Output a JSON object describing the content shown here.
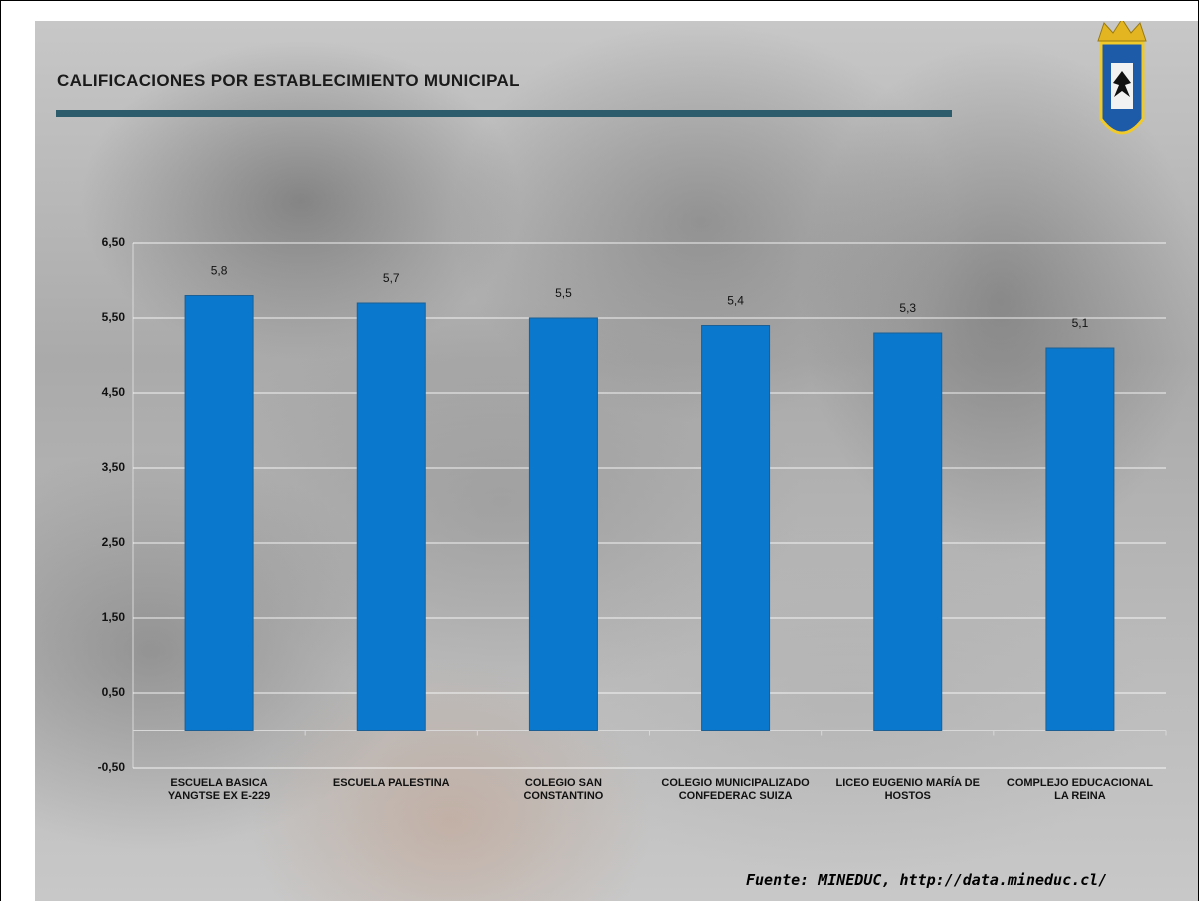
{
  "chart_data": {
    "type": "bar",
    "title": "CALIFICACIONES POR ESTABLECIMIENTO MUNICIPAL",
    "categories": [
      "ESCUELA BASICA YANGTSE EX E-229",
      "ESCUELA PALESTINA",
      "COLEGIO SAN CONSTANTINO",
      "COLEGIO MUNICIPALIZADO CONFEDERAC SUIZA",
      "LICEO EUGENIO MARÍA DE HOSTOS",
      "COMPLEJO EDUCACIONAL LA REINA"
    ],
    "values": [
      5.8,
      5.7,
      5.5,
      5.4,
      5.3,
      5.1
    ],
    "value_labels": [
      "5,8",
      "5,7",
      "5,5",
      "5,4",
      "5,3",
      "5,1"
    ],
    "color": "#0a78cc",
    "ylim": [
      -0.5,
      6.5
    ],
    "yticks": [
      {
        "value": -0.5,
        "label": "-0,50"
      },
      {
        "value": 0.5,
        "label": "0,50"
      },
      {
        "value": 1.5,
        "label": "1,50"
      },
      {
        "value": 2.5,
        "label": "2,50"
      },
      {
        "value": 3.5,
        "label": "3,50"
      },
      {
        "value": 4.5,
        "label": "4,50"
      },
      {
        "value": 5.5,
        "label": "5,50"
      },
      {
        "value": 6.5,
        "label": "6,50"
      }
    ],
    "grid": true,
    "source": "Fuente: MINEDUC, http://data.mineduc.cl/"
  }
}
